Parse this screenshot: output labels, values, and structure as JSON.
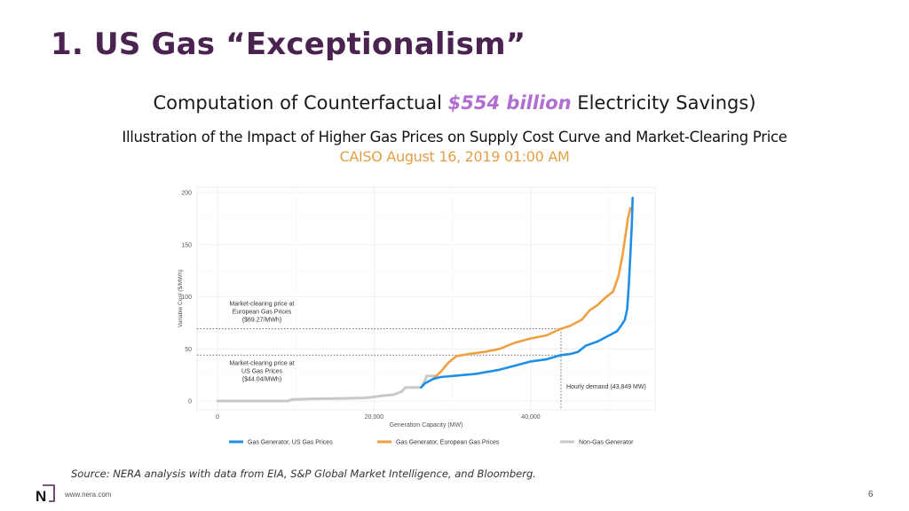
{
  "slide": {
    "title": "1. US Gas “Exceptionalism”",
    "subtitle_pre": "Computation of Counterfactual ",
    "subtitle_highlight": "$554 billion",
    "subtitle_post": " Electricity Savings)",
    "subtitle2": "Illustration of the Impact of Higher Gas Prices on Supply Cost Curve and Market-Clearing Price",
    "subtitle3": "CAISO August 16, 2019 01:00 AM",
    "source": "Source: NERA analysis with data from EIA, S&P Global Market Intelligence, and Bloomberg.",
    "url": "www.nera.com",
    "page_number": "6",
    "logo_icon": "nera-logo-icon",
    "colors": {
      "title": "#4a2350",
      "highlight": "#b06fd0",
      "caiso": "#e2a048",
      "logo": "#4a2350"
    }
  },
  "chart_data": {
    "type": "line",
    "title": "",
    "xlabel": "Generation Capacity (MW)",
    "ylabel": "Variable Cost ($/MWh)",
    "xlim": [
      -1000,
      54500
    ],
    "ylim": [
      -5,
      205
    ],
    "x_ticks": [
      0,
      20000,
      40000
    ],
    "x_tick_labels": [
      "0",
      "20,000",
      "40,000"
    ],
    "y_ticks": [
      0,
      50,
      100,
      150,
      200
    ],
    "y_tick_labels": [
      "0",
      "50",
      "100",
      "150",
      "200"
    ],
    "grid": true,
    "legend_position": "bottom",
    "colors": {
      "us": "#1f8ee6",
      "eu": "#f0a040",
      "nongas": "#c8c8c8"
    },
    "series": [
      {
        "name": "Non-Gas Generator",
        "key": "nongas",
        "points": [
          [
            0,
            0
          ],
          [
            9000,
            0
          ],
          [
            9500,
            1.5
          ],
          [
            12000,
            2
          ],
          [
            16000,
            2.5
          ],
          [
            19000,
            3
          ],
          [
            21000,
            5
          ],
          [
            22500,
            6
          ],
          [
            23500,
            9
          ],
          [
            24000,
            13
          ],
          [
            26000,
            13
          ],
          [
            26500,
            20
          ],
          [
            26700,
            24
          ],
          [
            28000,
            24
          ]
        ]
      },
      {
        "name": "Gas Generator, US Gas Prices",
        "key": "us",
        "points": [
          [
            26000,
            13
          ],
          [
            26500,
            17
          ],
          [
            27500,
            21
          ],
          [
            28500,
            23
          ],
          [
            30000,
            24
          ],
          [
            33000,
            26
          ],
          [
            36000,
            30
          ],
          [
            38000,
            34
          ],
          [
            40000,
            38
          ],
          [
            42000,
            40
          ],
          [
            43849,
            44.04
          ],
          [
            45000,
            45
          ],
          [
            46000,
            47
          ],
          [
            47000,
            53
          ],
          [
            48500,
            57
          ],
          [
            50000,
            63
          ],
          [
            51000,
            67
          ],
          [
            51500,
            72
          ],
          [
            52000,
            78
          ],
          [
            52300,
            88
          ],
          [
            52500,
            110
          ],
          [
            52700,
            140
          ],
          [
            52900,
            170
          ],
          [
            53000,
            195
          ]
        ]
      },
      {
        "name": "Gas Generator, European Gas Prices",
        "key": "eu",
        "points": [
          [
            27500,
            21
          ],
          [
            28500,
            28
          ],
          [
            29500,
            37
          ],
          [
            30500,
            43
          ],
          [
            32000,
            45
          ],
          [
            34000,
            47
          ],
          [
            36000,
            50
          ],
          [
            38000,
            56
          ],
          [
            40000,
            60
          ],
          [
            42000,
            63
          ],
          [
            43849,
            69.27
          ],
          [
            45000,
            72
          ],
          [
            46500,
            78
          ],
          [
            47500,
            87
          ],
          [
            48500,
            92
          ],
          [
            49500,
            99
          ],
          [
            50500,
            105
          ],
          [
            51200,
            120
          ],
          [
            51700,
            140
          ],
          [
            52100,
            160
          ],
          [
            52400,
            175
          ],
          [
            52700,
            185
          ]
        ]
      }
    ],
    "annotations": [
      {
        "text_lines": [
          "Market-clearing price at",
          "European Gas Prices",
          "($69.27/MWh)"
        ],
        "y": 69.27,
        "type": "hline"
      },
      {
        "text_lines": [
          "Market-clearing price at",
          "US Gas Prices",
          "($44.04/MWh)"
        ],
        "y": 44.04,
        "type": "hline"
      },
      {
        "text_lines": [
          "Hourly demand (43,849 MW)"
        ],
        "x": 43849,
        "type": "vline"
      }
    ]
  }
}
